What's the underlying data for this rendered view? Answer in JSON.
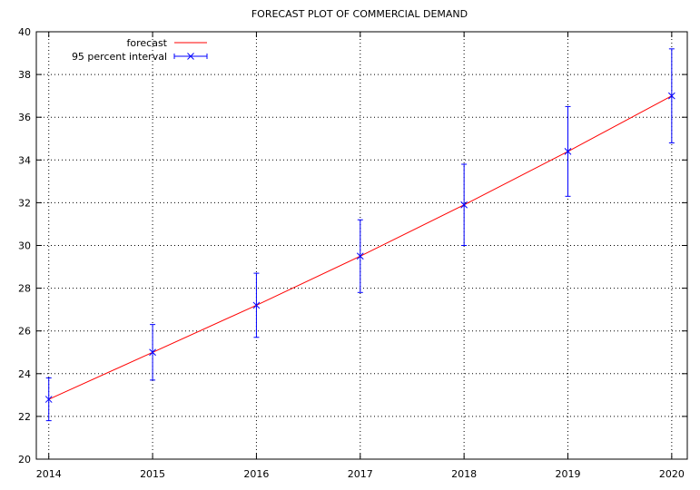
{
  "chart_data": {
    "type": "line",
    "title": "FORECAST PLOT OF COMMERCIAL DEMAND",
    "xlabel": "",
    "ylabel": "",
    "x": [
      2014,
      2015,
      2016,
      2017,
      2018,
      2019,
      2020
    ],
    "xlim": [
      2013.88,
      2020.15
    ],
    "ylim": [
      20,
      40
    ],
    "x_ticks": [
      "2014",
      "2015",
      "2016",
      "2017",
      "2018",
      "2019",
      "2020"
    ],
    "y_ticks": [
      "20",
      "22",
      "24",
      "26",
      "28",
      "30",
      "32",
      "34",
      "36",
      "38",
      "40"
    ],
    "grid": true,
    "legend_position": "top-left",
    "series": [
      {
        "name": "forecast",
        "kind": "line",
        "color": "#ff0000",
        "values": [
          22.8,
          25.0,
          27.2,
          29.5,
          31.9,
          34.4,
          37.0
        ]
      },
      {
        "name": "95 percent interval",
        "kind": "errorbar",
        "color": "#0000ff",
        "values": [
          22.8,
          25.0,
          27.2,
          29.5,
          31.9,
          34.4,
          37.0
        ],
        "lower": [
          21.8,
          23.7,
          25.7,
          27.8,
          30.0,
          32.3,
          34.8
        ],
        "upper": [
          23.8,
          26.3,
          28.7,
          31.2,
          33.8,
          36.5,
          39.2
        ]
      }
    ]
  }
}
